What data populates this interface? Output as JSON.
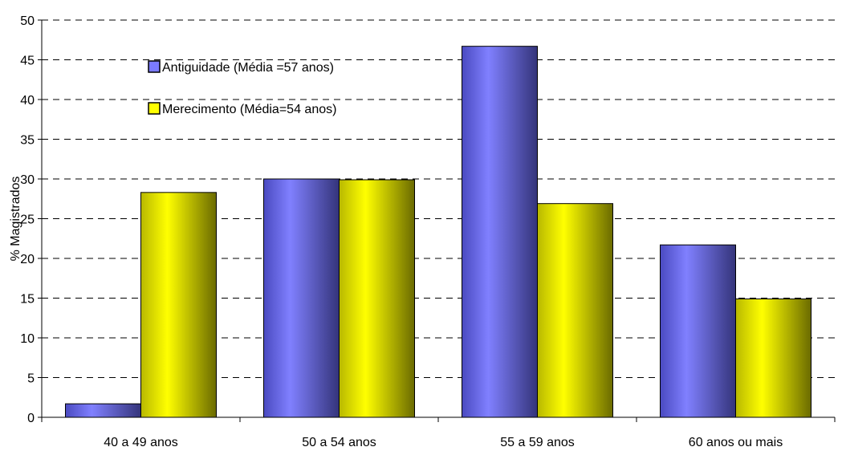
{
  "chart_data": {
    "type": "bar",
    "ylabel": "% Magistrados",
    "ylim": [
      0,
      50
    ],
    "y_ticks": [
      0,
      5,
      10,
      15,
      20,
      25,
      30,
      35,
      40,
      45,
      50
    ],
    "grid": "horizontal dashed",
    "legend_position": "top-left",
    "categories": [
      "40 a 49 anos",
      "50 a 54 anos",
      "55 a 59 anos",
      "60 anos ou mais"
    ],
    "series": [
      {
        "name": "Antiguidade (Média =57 anos)",
        "color": "#7b7bff",
        "values": [
          1.7,
          30.0,
          46.7,
          21.7
        ]
      },
      {
        "name": "Merecimento (Média=54 anos)",
        "color": "#ffff00",
        "values": [
          28.3,
          29.9,
          26.9,
          14.9
        ]
      }
    ]
  }
}
